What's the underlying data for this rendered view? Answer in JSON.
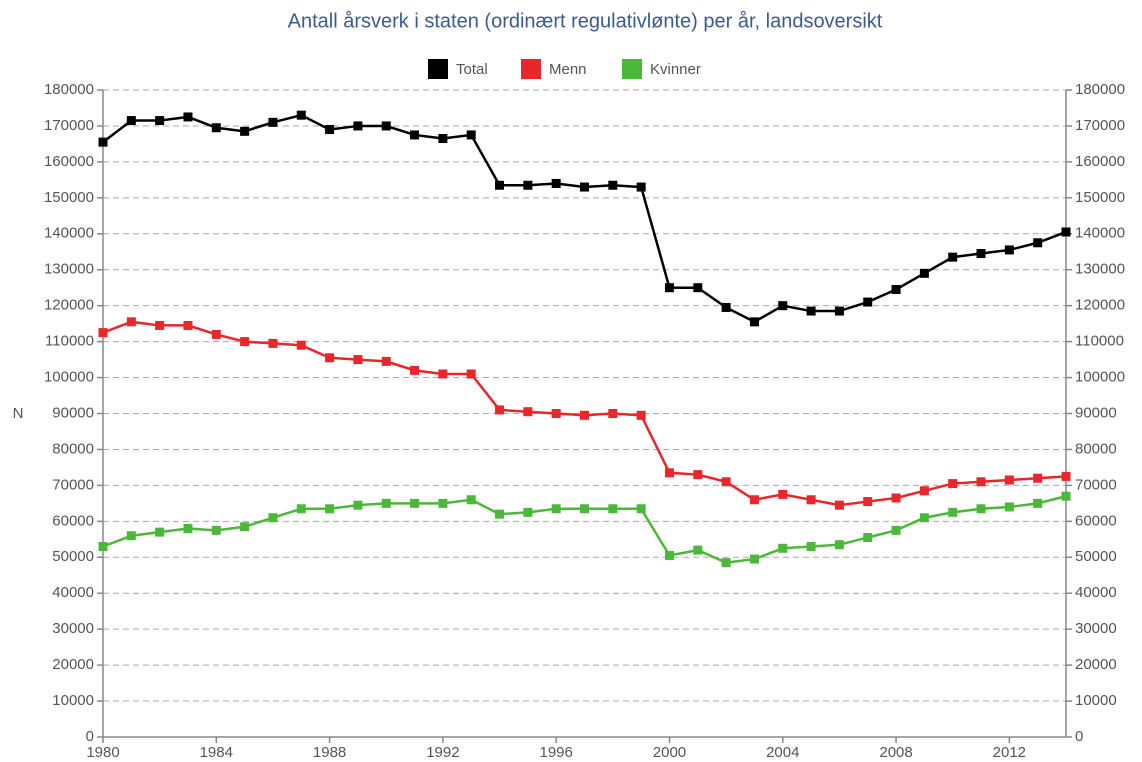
{
  "chart_data": {
    "type": "line",
    "title": "Antall årsverk i staten (ordinært regulativlønte) per år, landsoversikt",
    "y_label": "N",
    "x": [
      1980,
      1981,
      1982,
      1983,
      1984,
      1985,
      1986,
      1987,
      1988,
      1989,
      1990,
      1991,
      1992,
      1993,
      1994,
      1995,
      1996,
      1997,
      1998,
      1999,
      2000,
      2001,
      2002,
      2003,
      2004,
      2005,
      2006,
      2007,
      2008,
      2009,
      2010,
      2011,
      2012,
      2013,
      2014
    ],
    "series": [
      {
        "name": "Total",
        "color": "#000000",
        "values": [
          165500,
          171500,
          171500,
          172500,
          169500,
          168500,
          171000,
          173000,
          169000,
          170000,
          170000,
          167500,
          166500,
          167500,
          153500,
          153500,
          154000,
          153000,
          153500,
          153000,
          125000,
          125000,
          119500,
          115500,
          120000,
          118500,
          118500,
          121000,
          124500,
          129000,
          133500,
          134500,
          135500,
          137500,
          140500
        ]
      },
      {
        "name": "Menn",
        "color": "#e8262b",
        "values": [
          112500,
          115500,
          114500,
          114500,
          112000,
          110000,
          109500,
          109000,
          105500,
          105000,
          104500,
          102000,
          101000,
          101000,
          91000,
          90500,
          90000,
          89500,
          90000,
          89500,
          73500,
          73000,
          71000,
          66000,
          67500,
          66000,
          64500,
          65500,
          66500,
          68500,
          70500,
          71000,
          71500,
          72000,
          72500
        ]
      },
      {
        "name": "Kvinner",
        "color": "#4cb83a",
        "values": [
          53000,
          56000,
          57000,
          58000,
          57500,
          58500,
          61000,
          63500,
          63500,
          64500,
          65000,
          65000,
          65000,
          66000,
          62000,
          62500,
          63500,
          63500,
          63500,
          63500,
          50500,
          52000,
          48500,
          49500,
          52500,
          53000,
          53500,
          55500,
          57500,
          61000,
          62500,
          63500,
          64000,
          65000,
          67000
        ]
      }
    ],
    "xlim": [
      1980,
      2014
    ],
    "xticks": [
      1980,
      1984,
      1988,
      1992,
      1996,
      2000,
      2004,
      2008,
      2012
    ],
    "ylim": [
      0,
      180000
    ],
    "yticks": [
      0,
      10000,
      20000,
      30000,
      40000,
      50000,
      60000,
      70000,
      80000,
      90000,
      100000,
      110000,
      120000,
      130000,
      140000,
      150000,
      160000,
      170000,
      180000
    ],
    "y2lim": [
      0,
      180000
    ],
    "y2ticks": [
      0,
      10000,
      20000,
      30000,
      40000,
      50000,
      60000,
      70000,
      80000,
      90000,
      100000,
      110000,
      120000,
      130000,
      140000,
      150000,
      160000,
      170000,
      180000
    ],
    "grid": true,
    "legend": "top"
  }
}
